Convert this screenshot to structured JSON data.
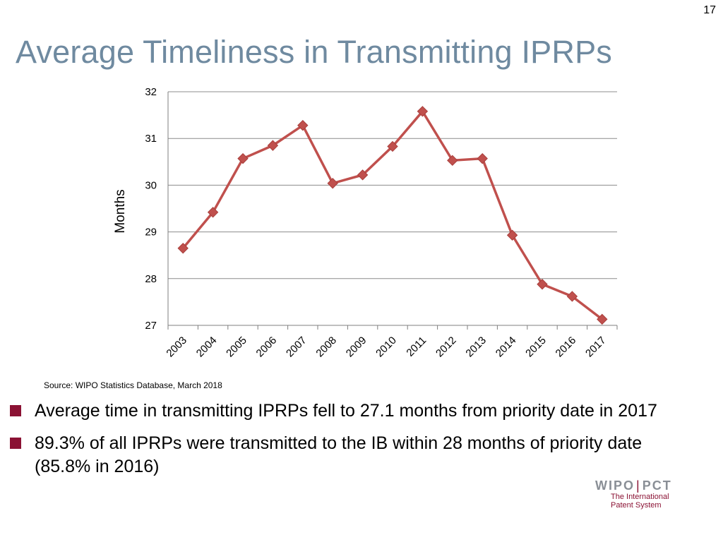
{
  "page_number": "17",
  "title": "Average Timeliness in Transmitting IPRPs",
  "source": "Source: WIPO Statistics Database, March 2018",
  "bullets": [
    "Average time in transmitting IPRPs fell to 27.1 months from priority date in 2017",
    "89.3% of all IPRPs were transmitted to the IB within 28 months of priority date (85.8% in 2016)"
  ],
  "logo": {
    "wipo": "WIPO",
    "pct": "PCT",
    "line1": "The International",
    "line2": "Patent System"
  },
  "colors": {
    "title": "#6f8aa0",
    "series": "#c0504d",
    "bullet": "#8b1234",
    "grid": "#8c8c8c"
  },
  "chart_data": {
    "type": "line",
    "x": [
      "2003",
      "2004",
      "2005",
      "2006",
      "2007",
      "2008",
      "2009",
      "2010",
      "2011",
      "2012",
      "2013",
      "2014",
      "2015",
      "2016",
      "2017"
    ],
    "series": [
      {
        "values": [
          28.65,
          29.42,
          30.57,
          30.85,
          31.28,
          30.04,
          30.22,
          30.83,
          31.58,
          30.53,
          30.57,
          28.93,
          27.88,
          27.62,
          27.13
        ],
        "marker": "diamond"
      }
    ],
    "title": "",
    "xlabel": "",
    "ylabel": "Months",
    "ylim": [
      27,
      32
    ],
    "yticks": [
      27,
      28,
      29,
      30,
      31,
      32
    ],
    "grid": "horizontal",
    "legend": "none"
  }
}
